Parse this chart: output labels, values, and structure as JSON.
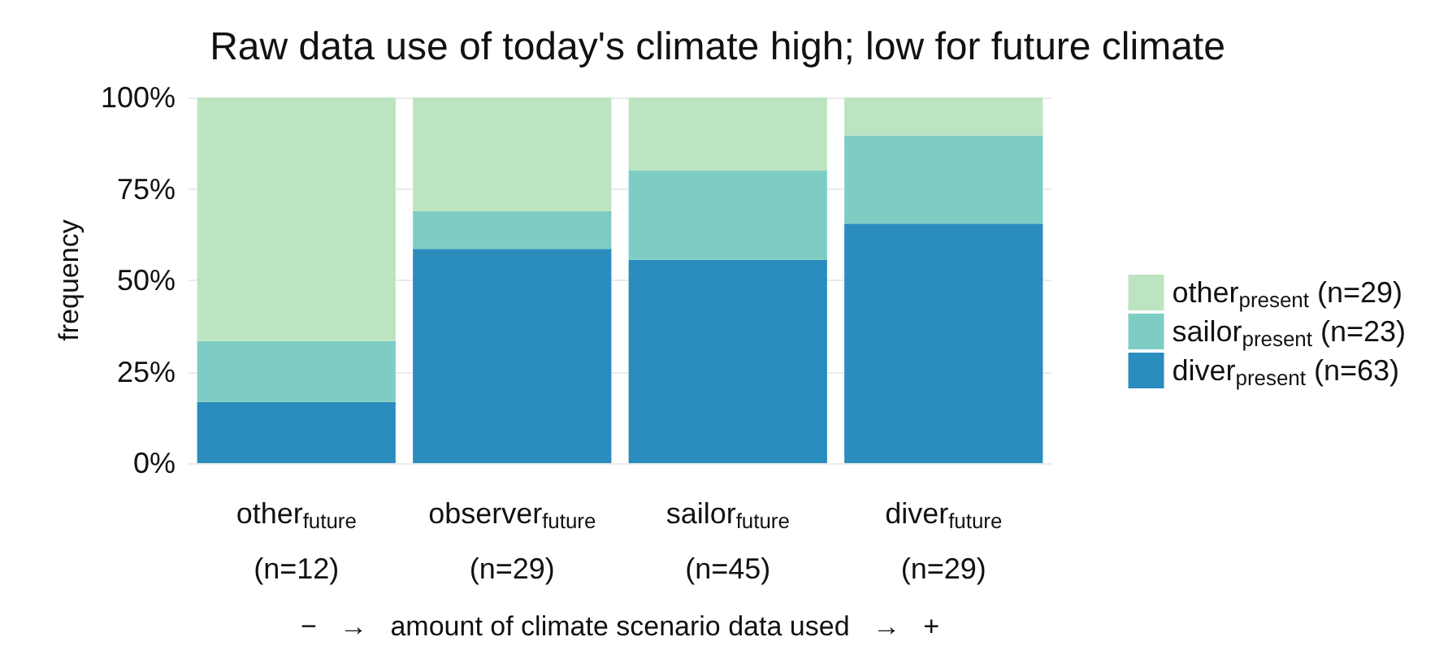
{
  "chart_data": {
    "type": "bar",
    "title": "Raw data use of today's climate high; low for future climate",
    "xlabel": "−   →   amount of climate scenario data used   →   +",
    "ylabel": "frequency",
    "categories": [
      "other$_{future}$\n(n=12)",
      "observer$_{future}$\n(n=29)",
      "sailor$_{future}$\n(n=45)",
      "diver$_{future}$\n(n=29)"
    ],
    "stacked": true,
    "series": [
      {
        "name": "diver$_{present}$ (n=63)",
        "color": "#2b8cbe",
        "values": [
          16.7,
          58.6,
          55.6,
          65.5
        ]
      },
      {
        "name": "sailor$_{present}$ (n=23)",
        "color": "#7ecdc4",
        "values": [
          16.7,
          10.3,
          24.4,
          24.1
        ]
      },
      {
        "name": "other$_{present}$ (n=29)",
        "color": "#bce4c1",
        "values": [
          66.6,
          31.1,
          20.0,
          10.4
        ]
      }
    ],
    "ylim": [
      0,
      100
    ],
    "yticks": [
      {
        "value": 0,
        "label": "0%"
      },
      {
        "value": 25,
        "label": "25%"
      },
      {
        "value": 50,
        "label": "50%"
      },
      {
        "value": 75,
        "label": "75%"
      },
      {
        "value": 100,
        "label": "100%"
      }
    ],
    "grid": "y",
    "legend": "right"
  }
}
